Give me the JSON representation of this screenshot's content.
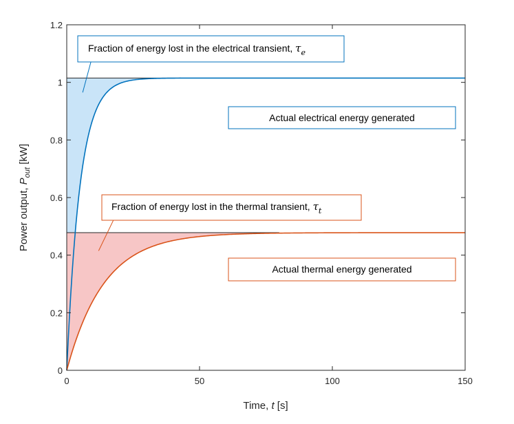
{
  "chart_data": {
    "type": "line",
    "xlabel": {
      "text": "Time, ",
      "italic": "t",
      "unit": " [s]"
    },
    "ylabel": {
      "text": "Power output, ",
      "italic": "P",
      "sub": "out",
      "unit": " [kW]"
    },
    "xlim": [
      0,
      150
    ],
    "ylim": [
      0,
      1.2
    ],
    "xticks": [
      0,
      50,
      100,
      150
    ],
    "yticks": [
      0,
      0.2,
      0.4,
      0.6,
      0.8,
      1,
      1.2
    ],
    "xtick_labels": [
      "0",
      "50",
      "100",
      "150"
    ],
    "ytick_labels": [
      "0",
      "0.2",
      "0.4",
      "0.6",
      "0.8",
      "1",
      "1.2"
    ],
    "grid": false,
    "series": [
      {
        "key": "electrical",
        "color": "#0072BD",
        "fill_color": "#C9E4F8",
        "steady_state": 1.015,
        "time_constant": 5,
        "x": [
          0,
          1,
          2,
          3,
          4,
          5,
          6,
          8,
          10,
          12,
          15,
          20,
          25,
          30,
          40,
          50,
          75,
          100,
          125,
          150
        ],
        "y": [
          0,
          0.184,
          0.334,
          0.458,
          0.558,
          0.642,
          0.709,
          0.811,
          0.878,
          0.924,
          0.965,
          0.996,
          1.008,
          1.012,
          1.015,
          1.015,
          1.015,
          1.015,
          1.015,
          1.015
        ]
      },
      {
        "key": "thermal",
        "color": "#D95319",
        "fill_color": "#F7C6C6",
        "steady_state": 0.478,
        "time_constant": 14,
        "x": [
          0,
          2,
          5,
          10,
          15,
          20,
          25,
          30,
          40,
          50,
          60,
          70,
          80,
          100,
          125,
          150
        ],
        "y": [
          0,
          0.064,
          0.142,
          0.244,
          0.315,
          0.364,
          0.398,
          0.422,
          0.451,
          0.465,
          0.472,
          0.475,
          0.477,
          0.478,
          0.478,
          0.478
        ]
      }
    ],
    "reference_lines": [
      {
        "y": 1.015,
        "x_end": 43,
        "color": "#262626"
      },
      {
        "y": 0.478,
        "x_end": 80,
        "color": "#262626"
      }
    ],
    "annotations": [
      {
        "key": "elec_lost",
        "text": "Fraction of energy lost in the electrical transient, ",
        "symbol": "τ",
        "sub": "e",
        "border_color": "#0072BD",
        "arrow_from": [
          9.5,
          1.085
        ],
        "arrow_to": [
          6,
          0.965
        ]
      },
      {
        "key": "elec_actual",
        "text": "Actual electrical energy generated",
        "border_color": "#0072BD"
      },
      {
        "key": "therm_lost",
        "text": "Fraction of energy lost in the thermal transient, ",
        "symbol": "τ",
        "sub": "t",
        "border_color": "#D95319",
        "arrow_from": [
          17.5,
          0.52
        ],
        "arrow_to": [
          12,
          0.415
        ]
      },
      {
        "key": "therm_actual",
        "text": "Actual thermal energy generated",
        "border_color": "#D95319"
      }
    ]
  }
}
